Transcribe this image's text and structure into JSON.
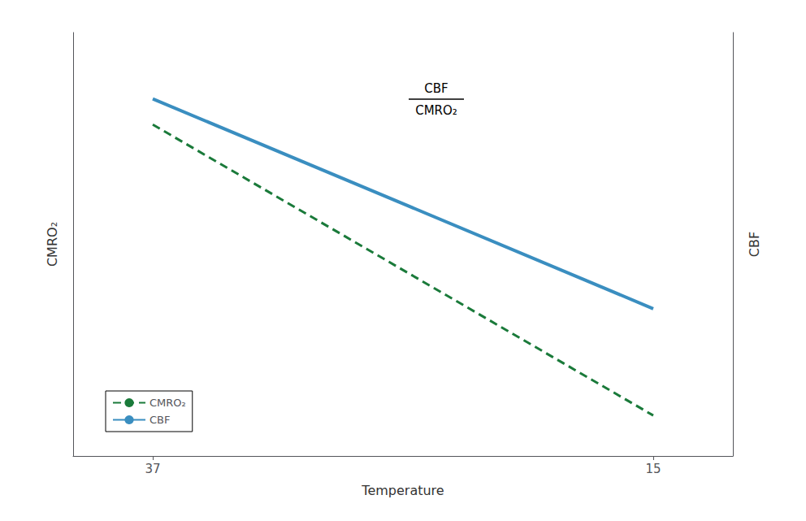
{
  "chart_data": {
    "type": "line",
    "xlabel": "Temperature",
    "ylabel": "CMRO₂",
    "y2label": "CBF",
    "xlim": [
      40.5,
      11.5
    ],
    "xticks": [
      37,
      15
    ],
    "ylim": [
      -0.05,
      1.1
    ],
    "yticks": [],
    "y2lim": [
      -0.05,
      1.1
    ],
    "y2ticks": [],
    "tick_labels": "x",
    "grid": false,
    "legend": "lower left",
    "annotations": [
      "CBF",
      "CMRO₂"
    ],
    "series": [
      {
        "name": "CMRO₂",
        "color": "#1a7a3a",
        "line_style": "dashed",
        "x": [
          37,
          15
        ],
        "values": [
          0.85,
          0.06
        ]
      },
      {
        "name": "CBF",
        "color": "#3a8ec0",
        "line_style": "solid",
        "x": [
          37,
          15
        ],
        "values": [
          0.92,
          0.35
        ]
      }
    ]
  }
}
